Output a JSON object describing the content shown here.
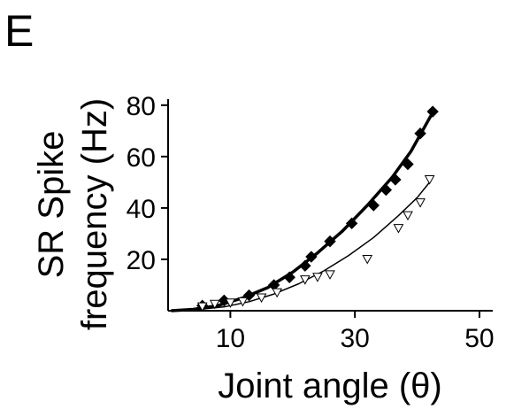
{
  "panel_label": "E",
  "chart_data": {
    "type": "scatter",
    "xlabel": "Joint angle (θ)",
    "ylabel_line1": "SR Spike",
    "ylabel_line2": "frequency (Hz)",
    "xlim": [
      0,
      52
    ],
    "ylim": [
      0,
      82
    ],
    "xticks": [
      10,
      30,
      50
    ],
    "yticks": [
      20,
      40,
      60,
      80
    ],
    "series": [
      {
        "marker": "filled-diamond",
        "color": "#000000",
        "points": [
          [
            5.5,
            2
          ],
          [
            9,
            4
          ],
          [
            13,
            6
          ],
          [
            17,
            10
          ],
          [
            19.5,
            13
          ],
          [
            22,
            17.5
          ],
          [
            23,
            21
          ],
          [
            26,
            27
          ],
          [
            29.5,
            34
          ],
          [
            33,
            41
          ],
          [
            35,
            47
          ],
          [
            36.5,
            51
          ],
          [
            38.5,
            57
          ],
          [
            40.5,
            69
          ],
          [
            42.5,
            77.5
          ]
        ],
        "fit": [
          [
            0.5,
            0
          ],
          [
            4,
            0.5
          ],
          [
            8,
            2
          ],
          [
            12,
            5
          ],
          [
            16,
            9
          ],
          [
            20,
            15
          ],
          [
            24,
            22.5
          ],
          [
            28,
            31
          ],
          [
            32,
            41
          ],
          [
            36,
            52
          ],
          [
            39,
            62
          ],
          [
            42,
            75
          ],
          [
            42.5,
            77
          ]
        ]
      },
      {
        "marker": "open-triangle-down",
        "color": "#000000",
        "points": [
          [
            5.5,
            1.5
          ],
          [
            7.5,
            2.5
          ],
          [
            10,
            3
          ],
          [
            12,
            3.5
          ],
          [
            15,
            5
          ],
          [
            17.5,
            7
          ],
          [
            22,
            12
          ],
          [
            24,
            13
          ],
          [
            26,
            14
          ],
          [
            32,
            20
          ],
          [
            37,
            32
          ],
          [
            38.5,
            37
          ],
          [
            40.5,
            42
          ],
          [
            42,
            51
          ]
        ],
        "fit": [
          [
            0.5,
            0
          ],
          [
            5,
            0.5
          ],
          [
            9,
            1.5
          ],
          [
            13,
            3.5
          ],
          [
            17,
            6.5
          ],
          [
            21,
            10.5
          ],
          [
            25,
            15.5
          ],
          [
            29,
            21.5
          ],
          [
            33,
            28.5
          ],
          [
            37,
            37
          ],
          [
            40,
            44
          ],
          [
            42,
            50
          ]
        ]
      }
    ]
  }
}
